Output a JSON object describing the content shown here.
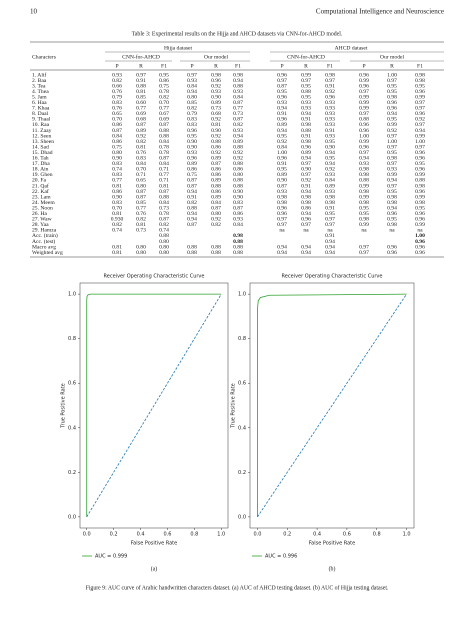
{
  "header": {
    "page_number": "10",
    "journal": "Computational Intelligence and Neuroscience"
  },
  "table": {
    "caption": "Table 3: Experimental results on the Hijja and AHCD datasets via CNN-for-AHCD model.",
    "row_header": "Characters",
    "groups": [
      {
        "name": "Hijja dataset",
        "subgroups": [
          "CNN-for-AHCD",
          "Our model"
        ]
      },
      {
        "name": "AHCD dataset",
        "subgroups": [
          "CNN-for-AHCD",
          "Our model"
        ]
      }
    ],
    "columns": [
      "P",
      "R",
      "F1",
      "P",
      "R",
      "F1",
      "P",
      "R",
      "F1",
      "P",
      "R",
      "F1"
    ],
    "rows": [
      {
        "label": "1. Alif",
        "values": [
          "0.93",
          "0.97",
          "0.95",
          "0.97",
          "0.98",
          "0.98",
          "0.96",
          "0.99",
          "0.98",
          "0.96",
          "1.00",
          "0.98"
        ]
      },
      {
        "label": "2. Baa",
        "values": [
          "0.82",
          "0.91",
          "0.86",
          "0.93",
          "0.96",
          "0.94",
          "0.97",
          "0.97",
          "0.97",
          "0.99",
          "0.97",
          "0.98"
        ]
      },
      {
        "label": "3. Tea",
        "values": [
          "0.66",
          "0.88",
          "0.75",
          "0.84",
          "0.92",
          "0.88",
          "0.87",
          "0.95",
          "0.91",
          "0.96",
          "0.95",
          "0.95"
        ]
      },
      {
        "label": "4. Thea",
        "values": [
          "0.76",
          "0.81",
          "0.78",
          "0.94",
          "0.93",
          "0.93",
          "0.95",
          "0.88",
          "0.92",
          "0.97",
          "0.95",
          "0.96"
        ]
      },
      {
        "label": "5. Jam",
        "values": [
          "0.79",
          "0.85",
          "0.82",
          "0.80",
          "0.90",
          "0.84",
          "0.96",
          "0.95",
          "0.96",
          "0.99",
          "0.98",
          "0.99"
        ]
      },
      {
        "label": "6. Haa",
        "values": [
          "0.83",
          "0.60",
          "0.70",
          "0.85",
          "0.89",
          "0.87",
          "0.93",
          "0.93",
          "0.93",
          "0.99",
          "0.96",
          "0.97"
        ]
      },
      {
        "label": "7. Khaa",
        "values": [
          "0.76",
          "0.77",
          "0.77",
          "0.82",
          "0.73",
          "0.77",
          "0.94",
          "0.93",
          "0.93",
          "0.99",
          "0.96",
          "0.97"
        ]
      },
      {
        "label": "8. Daal",
        "values": [
          "0.65",
          "0.69",
          "0.67",
          "0.79",
          "0.68",
          "0.73",
          "0.91",
          "0.94",
          "0.93",
          "0.97",
          "0.94",
          "0.96"
        ]
      },
      {
        "label": "9. Thaal",
        "values": [
          "0.70",
          "0.68",
          "0.69",
          "0.83",
          "0.92",
          "0.87",
          "0.96",
          "0.91",
          "0.93",
          "0.88",
          "0.95",
          "0.92"
        ]
      },
      {
        "label": "10. Raa",
        "values": [
          "0.86",
          "0.87",
          "0.87",
          "0.83",
          "0.81",
          "0.82",
          "0.89",
          "0.98",
          "0.93",
          "0.96",
          "0.99",
          "0.97"
        ]
      },
      {
        "label": "11. Zaay",
        "values": [
          "0.87",
          "0.89",
          "0.88",
          "0.96",
          "0.90",
          "0.93",
          "0.94",
          "0.88",
          "0.91",
          "0.96",
          "0.92",
          "0.94"
        ]
      },
      {
        "label": "12. Seen",
        "values": [
          "0.84",
          "0.92",
          "0.88",
          "0.95",
          "0.92",
          "0.94",
          "0.95",
          "0.91",
          "0.93",
          "1.00",
          "0.97",
          "0.99"
        ]
      },
      {
        "label": "13. Sheen",
        "values": [
          "0.86",
          "0.82",
          "0.84",
          "0.90",
          "0.88",
          "0.89",
          "0.92",
          "0.98",
          "0.95",
          "0.99",
          "1.00",
          "1.00"
        ]
      },
      {
        "label": "14. Sad",
        "values": [
          "0.75",
          "0.81",
          "0.78",
          "0.90",
          "0.86",
          "0.88",
          "0.84",
          "0.96",
          "0.90",
          "0.96",
          "0.97",
          "0.97"
        ]
      },
      {
        "label": "15. Dhad",
        "values": [
          "0.80",
          "0.76",
          "0.78",
          "0.93",
          "0.92",
          "0.92",
          "1.00",
          "0.89",
          "0.94",
          "0.97",
          "0.95",
          "0.96"
        ]
      },
      {
        "label": "16. Tah",
        "values": [
          "0.90",
          "0.83",
          "0.87",
          "0.96",
          "0.89",
          "0.92",
          "0.96",
          "0.94",
          "0.95",
          "0.94",
          "0.98",
          "0.96"
        ]
      },
      {
        "label": "17. Dha",
        "values": [
          "0.83",
          "0.84",
          "0.84",
          "0.89",
          "0.87",
          "0.88",
          "0.91",
          "0.97",
          "0.94",
          "0.93",
          "0.97",
          "0.95"
        ]
      },
      {
        "label": "18. Ain",
        "values": [
          "0.74",
          "0.70",
          "0.71",
          "0.86",
          "0.86",
          "0.86",
          "0.95",
          "0.90",
          "0.92",
          "0.98",
          "0.93",
          "0.96"
        ]
      },
      {
        "label": "19. Ghen",
        "values": [
          "0.83",
          "0.71",
          "0.77",
          "0.75",
          "0.86",
          "0.80",
          "0.89",
          "0.97",
          "0.93",
          "0.98",
          "0.99",
          "0.99"
        ]
      },
      {
        "label": "20. Fa",
        "values": [
          "0.77",
          "0.65",
          "0.71",
          "0.87",
          "0.89",
          "0.88",
          "0.90",
          "0.92",
          "0.84",
          "0.88",
          "0.94",
          "0.88"
        ]
      },
      {
        "label": "21. Qaf",
        "values": [
          "0.81",
          "0.80",
          "0.81",
          "0.87",
          "0.88",
          "0.88",
          "0.87",
          "0.91",
          "0.89",
          "0.99",
          "0.97",
          "0.98"
        ]
      },
      {
        "label": "22. Kaf",
        "values": [
          "0.86",
          "0.87",
          "0.87",
          "0.94",
          "0.86",
          "0.90",
          "0.93",
          "0.94",
          "0.93",
          "0.98",
          "0.95",
          "0.96"
        ]
      },
      {
        "label": "23. Lam",
        "values": [
          "0.90",
          "0.87",
          "0.88",
          "0.91",
          "0.89",
          "0.90",
          "0.98",
          "0.98",
          "0.98",
          "0.99",
          "0.98",
          "0.99"
        ]
      },
      {
        "label": "24. Meem",
        "values": [
          "0.83",
          "0.85",
          "0.84",
          "0.82",
          "0.84",
          "0.83",
          "0.98",
          "0.98",
          "0.98",
          "0.98",
          "0.98",
          "0.98"
        ]
      },
      {
        "label": "25. Noon",
        "values": [
          "0.70",
          "0.77",
          "0.73",
          "0.88",
          "0.87",
          "0.87",
          "0.96",
          "0.86",
          "0.91",
          "0.95",
          "0.94",
          "0.95"
        ]
      },
      {
        "label": "26. Ha",
        "values": [
          "0.81",
          "0.76",
          "0.78",
          "0.94",
          "0.80",
          "0.86",
          "0.96",
          "0.94",
          "0.95",
          "0.95",
          "0.96",
          "0.96"
        ]
      },
      {
        "label": "27. Waw",
        "values": [
          "0.930",
          "0.82",
          "0.87",
          "0.94",
          "0.92",
          "0.93",
          "0.97",
          "0.96",
          "0.97",
          "0.98",
          "0.95",
          "0.96"
        ]
      },
      {
        "label": "28. Yaa",
        "values": [
          "0.82",
          "0.81",
          "0.82",
          "0.87",
          "0.82",
          "0.84",
          "0.97",
          "0.97",
          "0.97",
          "0.99",
          "0.98",
          "0.99"
        ]
      },
      {
        "label": "29. Hamza",
        "values": [
          "0.74",
          "0.73",
          "0.74",
          null,
          null,
          null,
          "na",
          "na",
          "na",
          "na",
          "na",
          "na"
        ]
      },
      {
        "label": "Acc. (train)",
        "emphasis": true,
        "values": [
          null,
          null,
          "0.88",
          null,
          null,
          "0.98",
          null,
          null,
          "0.91",
          null,
          null,
          "1.00"
        ]
      },
      {
        "label": "Acc. (test)",
        "emphasis": true,
        "values": [
          null,
          null,
          "0.80",
          null,
          null,
          "0.88",
          null,
          null,
          "0.94",
          null,
          null,
          "0.96"
        ]
      },
      {
        "label": "Macro avg",
        "values": [
          "0.81",
          "0.80",
          "0.80",
          "0.88",
          "0.88",
          "0.88",
          "0.94",
          "0.94",
          "0.94",
          "0.97",
          "0.96",
          "0.96"
        ]
      },
      {
        "label": "Weighted avg",
        "values": [
          "0.81",
          "0.80",
          "0.80",
          "0.88",
          "0.88",
          "0.88",
          "0.94",
          "0.94",
          "0.94",
          "0.97",
          "0.96",
          "0.96"
        ]
      }
    ]
  },
  "chart_data": [
    {
      "type": "line",
      "title": "Receiver Operating Characteristic Curve",
      "panel": "(a)",
      "x_label": "False Positive Rate",
      "y_label": "True Positive Rate",
      "xlim": [
        -0.05,
        1.05
      ],
      "ylim": [
        -0.05,
        1.05
      ],
      "xticks": [
        {
          "value": 0,
          "label": "0.0"
        },
        {
          "value": 0.2,
          "label": "0.2"
        },
        {
          "value": 0.4,
          "label": "0.4"
        },
        {
          "value": 0.6,
          "label": "0.6"
        },
        {
          "value": 0.8,
          "label": "0.8"
        },
        {
          "value": 1,
          "label": "1.0"
        }
      ],
      "yticks": [
        {
          "value": 0,
          "label": "0.0"
        },
        {
          "value": 0.2,
          "label": "0.2"
        },
        {
          "value": 0.4,
          "label": "0.4"
        },
        {
          "value": 0.6,
          "label": "0.6"
        },
        {
          "value": 0.8,
          "label": "0.8"
        },
        {
          "value": 1,
          "label": "1.0"
        }
      ],
      "series": [
        {
          "name": "AUC = 0.999",
          "color": "#2ca02c",
          "x": [
            0,
            0,
            0.002,
            0.01,
            0.03,
            1
          ],
          "values": [
            0,
            0.97,
            0.99,
            0.997,
            1,
            1
          ]
        },
        {
          "color": "#1f77b4",
          "dashed": true,
          "x": [
            0,
            1
          ],
          "values": [
            0,
            1
          ]
        }
      ]
    },
    {
      "type": "line",
      "title": "Receiver Operating Characteristic Curve",
      "panel": "(b)",
      "x_label": "False Positive Rate",
      "y_label": "True Positive Rate",
      "xlim": [
        -0.05,
        1.05
      ],
      "ylim": [
        -0.05,
        1.05
      ],
      "xticks": [
        {
          "value": 0,
          "label": "0.0"
        },
        {
          "value": 0.2,
          "label": "0.2"
        },
        {
          "value": 0.4,
          "label": "0.4"
        },
        {
          "value": 0.6,
          "label": "0.6"
        },
        {
          "value": 0.8,
          "label": "0.8"
        },
        {
          "value": 1,
          "label": "1.0"
        }
      ],
      "yticks": [
        {
          "value": 0,
          "label": "0.0"
        },
        {
          "value": 0.2,
          "label": "0.2"
        },
        {
          "value": 0.4,
          "label": "0.4"
        },
        {
          "value": 0.6,
          "label": "0.6"
        },
        {
          "value": 0.8,
          "label": "0.8"
        },
        {
          "value": 1,
          "label": "1.0"
        }
      ],
      "series": [
        {
          "name": "AUC = 0.996",
          "color": "#2ca02c",
          "x": [
            0,
            0,
            0.005,
            0.02,
            0.08,
            1
          ],
          "values": [
            0,
            0.93,
            0.97,
            0.985,
            0.995,
            1
          ]
        },
        {
          "color": "#1f77b4",
          "dashed": true,
          "x": [
            0,
            1
          ],
          "values": [
            0,
            1
          ]
        }
      ]
    }
  ],
  "figure_caption": "Figure 9: AUC curve of Arabic handwritten characters dataset. (a) AUC of AHCD testing dataset. (b) AUC of Hijja testing dataset."
}
